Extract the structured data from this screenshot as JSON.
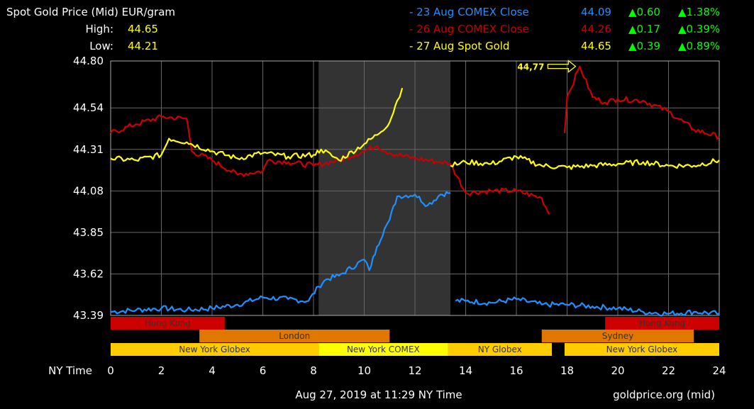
{
  "header": {
    "title": "Spot Gold Price (Mid) EUR/gram",
    "high_label": "High:",
    "high_value": "44.65",
    "low_label": "Low:",
    "low_value": "44.21",
    "legend": [
      {
        "label": "- 23 Aug COMEX Close",
        "value": "44.09",
        "change": "▲0.60",
        "pct": "▲1.38%",
        "color": "#1e90ff"
      },
      {
        "label": "- 26 Aug COMEX Close",
        "value": "44.26",
        "change": "▲0.17",
        "pct": "▲0.39%",
        "color": "#cc0000"
      },
      {
        "label": "- 27 Aug Spot Gold",
        "value": "44.65",
        "change": "▲0.39",
        "pct": "▲0.89%",
        "color": "#ffff00"
      }
    ]
  },
  "footer": {
    "timestamp": "Aug 27, 2019 at 11:29 NY Time",
    "source": "goldprice.org (mid)",
    "x_title": "NY Time"
  },
  "colors": {
    "blue": "#1e90ff",
    "red": "#cc0000",
    "yellow": "#ffff00",
    "green": "#00ff00",
    "grid": "#777777"
  },
  "chart_data": {
    "type": "line",
    "xlim": [
      0,
      24
    ],
    "ylim": [
      43.3,
      44.8
    ],
    "x_ticks": [
      0,
      2,
      4,
      6,
      8,
      10,
      12,
      14,
      16,
      18,
      20,
      22,
      24
    ],
    "y_ticks": [
      "44.80",
      "44.54",
      "44.31",
      "44.08",
      "43.85",
      "43.62",
      "43.39"
    ],
    "shaded_region": [
      8.2,
      13.4
    ],
    "annotation": {
      "text": "44,77",
      "x": 18.5,
      "y": 44.77
    },
    "series": [
      {
        "name": "23 Aug COMEX Close",
        "color": "#1e90ff",
        "segments": [
          [
            [
              0,
              43.41
            ],
            [
              1,
              43.42
            ],
            [
              2,
              43.43
            ],
            [
              3,
              43.42
            ],
            [
              4,
              43.43
            ],
            [
              5,
              43.45
            ],
            [
              6,
              43.49
            ],
            [
              7,
              43.48
            ],
            [
              7.8,
              43.47
            ],
            [
              8.2,
              43.55
            ],
            [
              8.5,
              43.59
            ],
            [
              9,
              43.61
            ],
            [
              10,
              43.7
            ],
            [
              10.2,
              43.64
            ],
            [
              10.5,
              43.77
            ],
            [
              10.8,
              43.87
            ],
            [
              11,
              43.92
            ],
            [
              11.3,
              44.05
            ],
            [
              12,
              44.06
            ],
            [
              12.5,
              44.0
            ],
            [
              13,
              44.06
            ],
            [
              13.4,
              44.07
            ]
          ],
          [
            [
              13.6,
              43.47
            ],
            [
              14,
              43.47
            ],
            [
              15,
              43.46
            ],
            [
              16,
              43.48
            ],
            [
              17,
              43.45
            ],
            [
              18,
              43.45
            ],
            [
              19,
              43.44
            ],
            [
              20,
              43.43
            ],
            [
              21,
              43.41
            ],
            [
              22,
              43.4
            ],
            [
              23,
              43.41
            ],
            [
              24,
              43.4
            ]
          ]
        ]
      },
      {
        "name": "26 Aug COMEX Close",
        "color": "#cc0000",
        "segments": [
          [
            [
              0,
              44.4
            ],
            [
              1,
              44.45
            ],
            [
              2,
              44.49
            ],
            [
              3,
              44.48
            ],
            [
              3.2,
              44.3
            ],
            [
              4,
              44.25
            ],
            [
              5,
              44.17
            ],
            [
              6,
              44.19
            ],
            [
              6.2,
              44.25
            ],
            [
              7,
              44.24
            ],
            [
              8,
              44.22
            ],
            [
              9,
              44.25
            ],
            [
              10,
              44.3
            ],
            [
              10.5,
              44.33
            ],
            [
              11,
              44.29
            ],
            [
              12,
              44.26
            ],
            [
              13,
              44.24
            ],
            [
              13.4,
              44.23
            ],
            [
              14,
              44.07
            ],
            [
              15,
              44.08
            ],
            [
              16,
              44.08
            ],
            [
              17,
              44.04
            ],
            [
              17.3,
              43.95
            ]
          ],
          [
            [
              17.9,
              44.4
            ],
            [
              18,
              44.6
            ],
            [
              18.5,
              44.77
            ],
            [
              19,
              44.6
            ],
            [
              19.5,
              44.57
            ],
            [
              20,
              44.59
            ],
            [
              21,
              44.58
            ],
            [
              22,
              44.52
            ],
            [
              23,
              44.42
            ],
            [
              24,
              44.38
            ]
          ]
        ]
      },
      {
        "name": "27 Aug Spot Gold",
        "color": "#ffff00",
        "segments": [
          [
            [
              0,
              44.26
            ],
            [
              1,
              44.25
            ],
            [
              2,
              44.28
            ],
            [
              2.3,
              44.37
            ],
            [
              3,
              44.35
            ],
            [
              4,
              44.3
            ],
            [
              5,
              44.26
            ],
            [
              6,
              44.29
            ],
            [
              7,
              44.27
            ],
            [
              8,
              44.28
            ],
            [
              8.3,
              44.31
            ],
            [
              9,
              44.25
            ],
            [
              10,
              44.34
            ],
            [
              10.5,
              44.39
            ],
            [
              11,
              44.46
            ],
            [
              11.3,
              44.58
            ],
            [
              11.5,
              44.65
            ]
          ],
          [
            [
              13.4,
              44.22
            ],
            [
              14,
              44.24
            ],
            [
              15,
              44.23
            ],
            [
              16,
              44.27
            ],
            [
              17,
              44.22
            ],
            [
              18,
              44.21
            ],
            [
              19,
              44.22
            ],
            [
              20,
              44.23
            ],
            [
              21,
              44.24
            ],
            [
              22,
              44.22
            ],
            [
              23,
              44.22
            ],
            [
              24,
              44.25
            ]
          ]
        ]
      }
    ],
    "sessions": [
      {
        "label": "Hong Kong",
        "row": 0,
        "start": 0,
        "end": 4.5,
        "color": "#cc0000"
      },
      {
        "label": "Hong Kong",
        "row": 0,
        "start": 19.5,
        "end": 24,
        "color": "#cc0000"
      },
      {
        "label": "London",
        "row": 1,
        "start": 3.5,
        "end": 11,
        "color": "#e07800"
      },
      {
        "label": "Sydney",
        "row": 1,
        "start": 17,
        "end": 23,
        "color": "#e07800"
      },
      {
        "label": "New York Globex",
        "row": 2,
        "start": 0,
        "end": 8.2,
        "color": "#ffcc00"
      },
      {
        "label": "New York COMEX",
        "row": 2,
        "start": 8.2,
        "end": 13.3,
        "color": "#ffff00"
      },
      {
        "label": "NY Globex",
        "row": 2,
        "start": 13.3,
        "end": 17.4,
        "color": "#ffcc00"
      },
      {
        "label": "New York Globex",
        "row": 2,
        "start": 17.9,
        "end": 24,
        "color": "#ffcc00"
      }
    ]
  }
}
